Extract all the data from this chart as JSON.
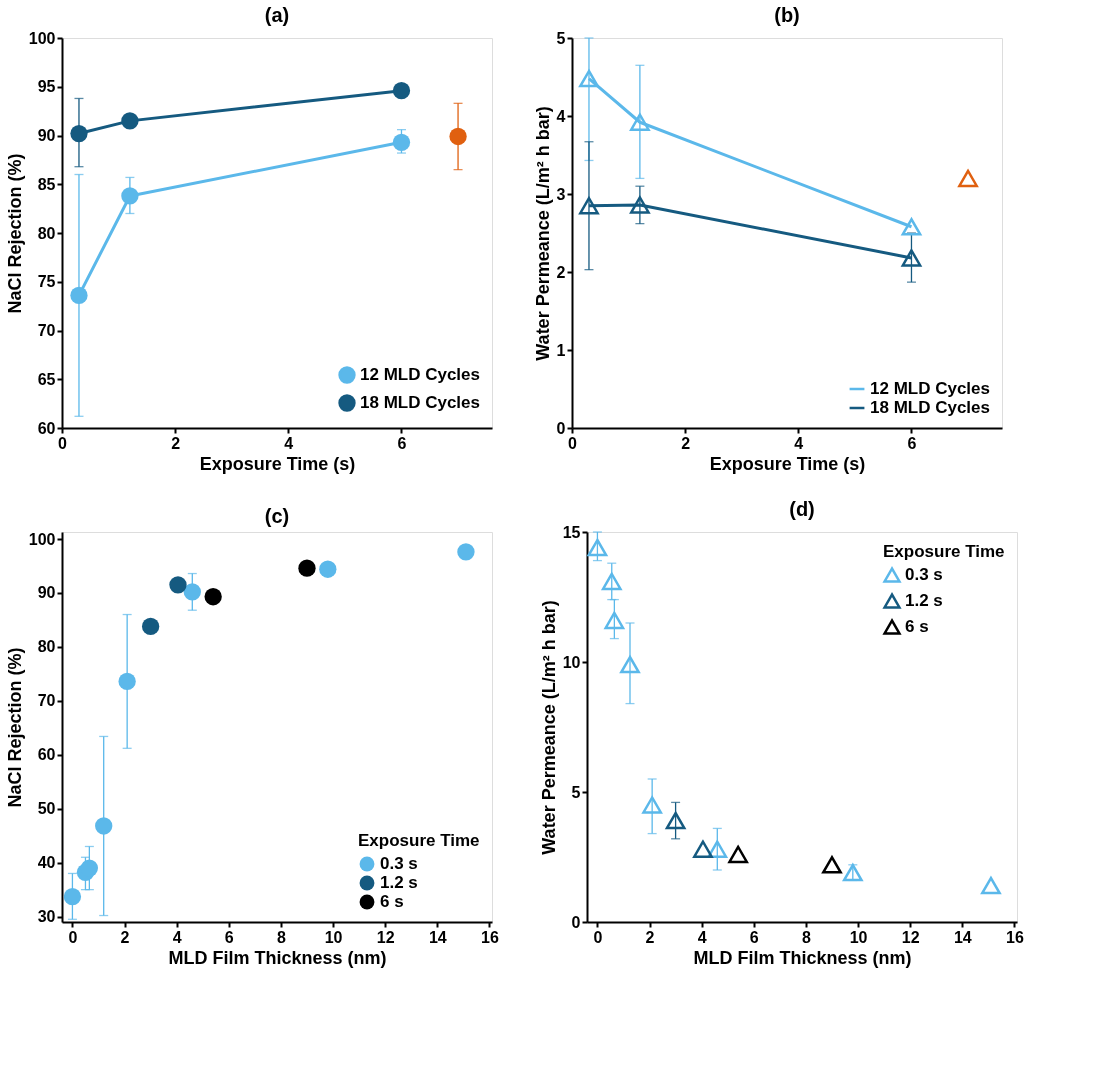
{
  "chart_data": [
    {
      "type": "line",
      "title": "(a)",
      "xlabel": "Exposure Time (s)",
      "ylabel": "NaCl Rejection (%)",
      "xlim": [
        0,
        7.6
      ],
      "xticks": [
        0,
        2,
        4,
        6
      ],
      "ylim": [
        60,
        100
      ],
      "yticks": [
        60,
        65,
        70,
        75,
        80,
        85,
        90,
        95,
        100
      ],
      "marker": "circle",
      "legend": "bottom right",
      "grid": false,
      "series": [
        {
          "name": "12 MLD Cycles",
          "color": "#5bb8ea",
          "x": [
            0.3,
            1.2,
            6
          ],
          "values": [
            73.6,
            83.8,
            89.3
          ],
          "errors": [
            [
              61.2,
              86.0
            ],
            [
              82.0,
              85.7
            ],
            [
              88.2,
              90.6
            ]
          ]
        },
        {
          "name": "18 MLD Cycles",
          "color": "#155a80",
          "x": [
            0.3,
            1.2,
            6
          ],
          "values": [
            90.2,
            91.5,
            94.6
          ],
          "errors": [
            [
              86.8,
              93.8
            ],
            null,
            null
          ]
        },
        {
          "type": "scatter",
          "color": "#e06010",
          "x": [
            7
          ],
          "values": [
            89.9
          ],
          "errors": [
            [
              86.5,
              93.3
            ]
          ]
        }
      ]
    },
    {
      "type": "line",
      "title": "(b)",
      "xlabel": "Exposure Time (s)",
      "ylabel": "Water Permeance (L/m² h bar)",
      "xlim": [
        0,
        7.6
      ],
      "xticks": [
        0,
        2,
        4,
        6
      ],
      "ylim": [
        0,
        5
      ],
      "yticks": [
        0,
        1,
        2,
        3,
        4,
        5
      ],
      "marker": "triangle",
      "legend": "bottom right",
      "grid": false,
      "series": [
        {
          "name": "12 MLD Cycles",
          "color": "#5bb8ea",
          "x": [
            0.3,
            1.2,
            6
          ],
          "values": [
            4.48,
            3.92,
            2.58
          ],
          "errors": [
            [
              3.43,
              5.0
            ],
            [
              3.2,
              4.65
            ],
            null
          ]
        },
        {
          "name": "18 MLD Cycles",
          "color": "#155a80",
          "x": [
            0.3,
            1.2,
            6
          ],
          "values": [
            2.85,
            2.86,
            2.18
          ],
          "errors": [
            [
              2.03,
              3.67
            ],
            [
              2.62,
              3.1
            ],
            [
              1.87,
              2.5
            ]
          ]
        },
        {
          "type": "scatter",
          "color": "#e06010",
          "x": [
            7
          ],
          "values": [
            3.2
          ]
        }
      ]
    },
    {
      "type": "scatter",
      "title": "(c)",
      "xlabel": "MLD Film Thickness (nm)",
      "ylabel": "NaCl Rejection (%)",
      "legend_title": "Exposure Time",
      "xlim": [
        -0.4,
        16.1
      ],
      "xticks": [
        0,
        2,
        4,
        6,
        8,
        10,
        12,
        14,
        16
      ],
      "ylim": [
        29,
        101.3
      ],
      "yticks": [
        30,
        40,
        50,
        60,
        70,
        80,
        90,
        100
      ],
      "marker": "circle",
      "legend": "bottom right",
      "grid": false,
      "series": [
        {
          "name": "0.3 s",
          "color": "#5bb8ea",
          "x": [
            0,
            0.5,
            0.65,
            1.2,
            2.1,
            4.6,
            9.8,
            15.1
          ],
          "values": [
            33.7,
            38.2,
            39.0,
            46.8,
            73.6,
            90.2,
            94.4,
            97.6
          ],
          "errors": [
            [
              29.5,
              38.0
            ],
            [
              35.0,
              41.0
            ],
            [
              35.0,
              43.0
            ],
            [
              30.2,
              63.4
            ],
            [
              61.2,
              86.0
            ],
            [
              86.8,
              93.6
            ],
            null,
            null
          ]
        },
        {
          "name": "1.2 s",
          "color": "#155a80",
          "x": [
            3,
            4.05
          ],
          "values": [
            83.8,
            91.5
          ]
        },
        {
          "name": "6 s",
          "color": "#000000",
          "x": [
            5.4,
            9
          ],
          "values": [
            89.3,
            94.6
          ]
        }
      ]
    },
    {
      "type": "scatter",
      "title": "(d)",
      "xlabel": "MLD Film Thickness (nm)",
      "ylabel": "Water Permeance (L/m² h bar)",
      "legend_title": "Exposure Time",
      "xlim": [
        -0.4,
        16.1
      ],
      "xticks": [
        0,
        2,
        4,
        6,
        8,
        10,
        12,
        14,
        16
      ],
      "ylim": [
        0,
        15
      ],
      "yticks": [
        0,
        5,
        10,
        15
      ],
      "marker": "triangle",
      "legend": "top right",
      "grid": false,
      "series": [
        {
          "name": "0.3 s",
          "color": "#5bb8ea",
          "x": [
            0,
            0.55,
            0.65,
            1.25,
            2.1,
            4.6,
            9.8,
            15.1
          ],
          "values": [
            14.4,
            13.1,
            11.6,
            9.9,
            4.5,
            2.8,
            1.9,
            1.4
          ],
          "errors": [
            [
              13.9,
              15.0
            ],
            [
              12.4,
              13.8
            ],
            [
              10.9,
              12.4
            ],
            [
              8.4,
              11.5
            ],
            [
              3.4,
              5.5
            ],
            [
              2.0,
              3.6
            ],
            [
              1.6,
              2.2
            ],
            null
          ]
        },
        {
          "name": "1.2 s",
          "color": "#155a80",
          "x": [
            3,
            4.05
          ],
          "values": [
            3.9,
            2.8
          ],
          "errors": [
            [
              3.2,
              4.6
            ],
            null
          ]
        },
        {
          "name": "6 s",
          "color": "#000000",
          "x": [
            5.4,
            9
          ],
          "values": [
            2.6,
            2.2
          ]
        }
      ]
    }
  ]
}
